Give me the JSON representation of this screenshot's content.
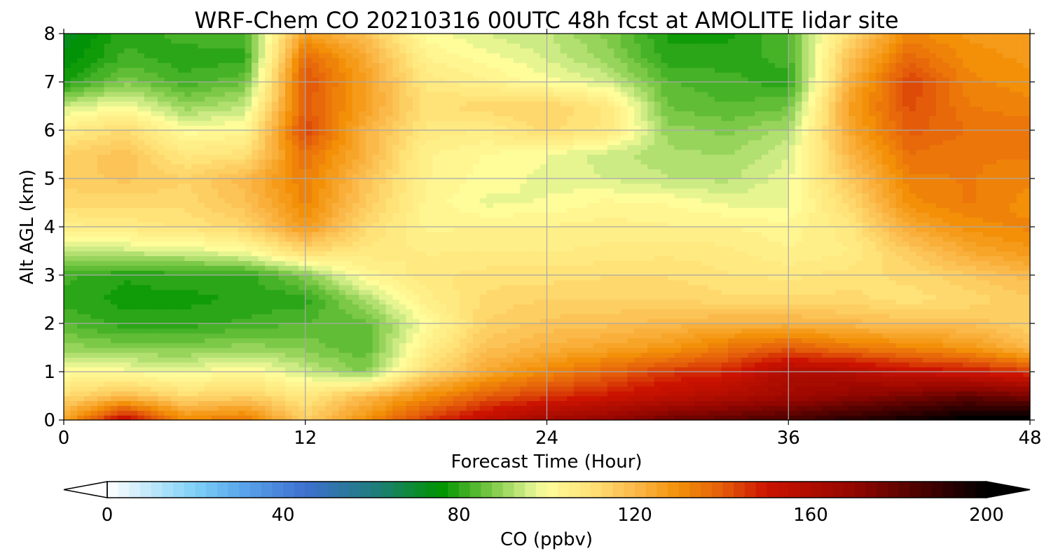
{
  "chart_data": {
    "type": "heatmap",
    "title": "WRF-Chem CO  20210316 00UTC 48h fcst at AMOLITE lidar site",
    "xlabel": "Forecast Time (Hour)",
    "ylabel": "Alt AGL (km)",
    "xlim": [
      0,
      48
    ],
    "ylim": [
      0,
      8
    ],
    "xticks": [
      0,
      12,
      24,
      36,
      48
    ],
    "yticks": [
      0,
      1,
      2,
      3,
      4,
      5,
      6,
      7,
      8
    ],
    "grid": true,
    "x_hours": [
      0,
      3,
      6,
      9,
      12,
      15,
      18,
      21,
      24,
      27,
      30,
      33,
      36,
      39,
      42,
      45,
      48
    ],
    "y_km": [
      0,
      0.5,
      1,
      1.5,
      2,
      2.5,
      3,
      3.5,
      4,
      4.5,
      5,
      5.5,
      6,
      6.5,
      7,
      7.5,
      8
    ],
    "co_ppbv": [
      [
        125,
        155,
        132,
        135,
        115,
        130,
        145,
        155,
        165,
        170,
        178,
        182,
        186,
        192,
        197,
        202,
        205
      ],
      [
        112,
        120,
        112,
        115,
        108,
        120,
        130,
        140,
        145,
        150,
        155,
        160,
        165,
        170,
        175,
        180,
        175
      ],
      [
        100,
        100,
        98,
        102,
        95,
        88,
        112,
        124,
        132,
        138,
        145,
        148,
        160,
        158,
        152,
        150,
        145
      ],
      [
        90,
        88,
        88,
        90,
        88,
        84,
        105,
        118,
        122,
        125,
        128,
        135,
        140,
        135,
        132,
        128,
        120
      ],
      [
        84,
        80,
        80,
        82,
        84,
        85,
        100,
        114,
        117,
        118,
        120,
        122,
        122,
        120,
        118,
        118,
        114
      ],
      [
        80,
        78,
        78,
        79,
        80,
        92,
        105,
        112,
        114,
        114,
        114,
        112,
        112,
        112,
        110,
        112,
        116
      ],
      [
        82,
        79,
        80,
        80,
        88,
        102,
        108,
        110,
        110,
        111,
        111,
        109,
        108,
        110,
        112,
        116,
        120
      ],
      [
        93,
        95,
        96,
        100,
        112,
        108,
        106,
        106,
        106,
        107,
        108,
        107,
        104,
        106,
        116,
        124,
        128
      ],
      [
        105,
        107,
        109,
        113,
        128,
        112,
        103,
        104,
        104,
        105,
        104,
        104,
        102,
        108,
        124,
        130,
        132
      ],
      [
        112,
        112,
        112,
        118,
        132,
        116,
        103,
        98,
        99,
        102,
        101,
        98,
        98,
        112,
        130,
        134,
        130
      ],
      [
        115,
        117,
        114,
        120,
        134,
        118,
        104,
        100,
        98,
        96,
        94,
        93,
        98,
        116,
        133,
        134,
        132
      ],
      [
        114,
        118,
        108,
        110,
        136,
        122,
        104,
        101,
        99,
        95,
        92,
        91,
        96,
        120,
        136,
        134,
        134
      ],
      [
        106,
        112,
        100,
        102,
        144,
        122,
        108,
        106,
        112,
        108,
        90,
        88,
        92,
        124,
        140,
        136,
        136
      ],
      [
        95,
        100,
        90,
        94,
        140,
        126,
        110,
        113,
        114,
        108,
        86,
        84,
        86,
        126,
        142,
        134,
        132
      ],
      [
        78,
        88,
        82,
        86,
        142,
        126,
        108,
        104,
        100,
        96,
        84,
        82,
        80,
        122,
        144,
        132,
        130
      ],
      [
        74,
        82,
        80,
        80,
        138,
        124,
        104,
        100,
        96,
        90,
        80,
        80,
        82,
        118,
        138,
        130,
        128
      ],
      [
        72,
        80,
        82,
        84,
        126,
        118,
        100,
        96,
        94,
        88,
        78,
        78,
        84,
        112,
        132,
        128,
        128
      ]
    ],
    "colorbar": {
      "label": "CO  (ppbv)",
      "ticks": [
        0,
        40,
        80,
        120,
        160,
        200
      ],
      "range": [
        0,
        200
      ],
      "extend": "both",
      "stops": [
        {
          "v": 0,
          "c": "#ffffff"
        },
        {
          "v": 20,
          "c": "#7ed0f6"
        },
        {
          "v": 30,
          "c": "#5ba8ec"
        },
        {
          "v": 45,
          "c": "#3d70d0"
        },
        {
          "v": 62,
          "c": "#1c7e74"
        },
        {
          "v": 76,
          "c": "#009400"
        },
        {
          "v": 86,
          "c": "#6cc23c"
        },
        {
          "v": 96,
          "c": "#d8f08c"
        },
        {
          "v": 100,
          "c": "#fffc9a"
        },
        {
          "v": 110,
          "c": "#ffe278"
        },
        {
          "v": 120,
          "c": "#fbb94a"
        },
        {
          "v": 130,
          "c": "#f39008"
        },
        {
          "v": 140,
          "c": "#e45c0a"
        },
        {
          "v": 150,
          "c": "#cc1300"
        },
        {
          "v": 170,
          "c": "#920600"
        },
        {
          "v": 190,
          "c": "#320000"
        },
        {
          "v": 200,
          "c": "#000000"
        }
      ],
      "under_color": "#ffffff",
      "over_color": "#000000"
    }
  }
}
